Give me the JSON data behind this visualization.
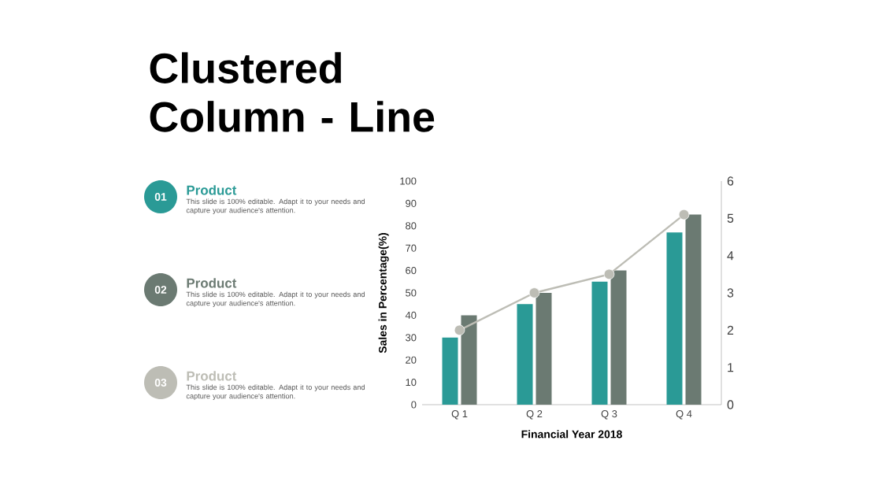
{
  "chart_data": {
    "type": "bar",
    "title": "Clustered Column - Line",
    "xlabel": "Financial Year 2018",
    "ylabel": "Sales in Percentage(%)",
    "categories": [
      "Q 1",
      "Q 2",
      "Q 3",
      "Q 4"
    ],
    "series": [
      {
        "name": "Product",
        "color": "#2a9a96",
        "values": [
          30,
          45,
          55,
          77
        ]
      },
      {
        "name": "Product",
        "color": "#6b7a72",
        "values": [
          40,
          50,
          60,
          85
        ]
      },
      {
        "name": "Product",
        "color": "#bdbdb5",
        "values": [
          2,
          3,
          3.5,
          5.1
        ],
        "type": "line",
        "axis": "y2"
      }
    ],
    "ylim": [
      0,
      100
    ],
    "yticks": [
      0,
      10,
      20,
      30,
      40,
      50,
      60,
      70,
      80,
      90,
      100
    ],
    "y2lim": [
      0,
      6
    ],
    "y2ticks": [
      0,
      1,
      2,
      3,
      4,
      5,
      6
    ],
    "marker": "circle",
    "legend": "left",
    "annotations": [
      "01",
      "This slide is 100% editable. Adapt it to your needs and capture your audience's attention.",
      "02",
      "This slide is 100% editable. Adapt it to your needs and capture your audience's attention.",
      "03",
      "This slide is 100% editable. Adapt it to your needs and capture your audience's attention."
    ]
  }
}
